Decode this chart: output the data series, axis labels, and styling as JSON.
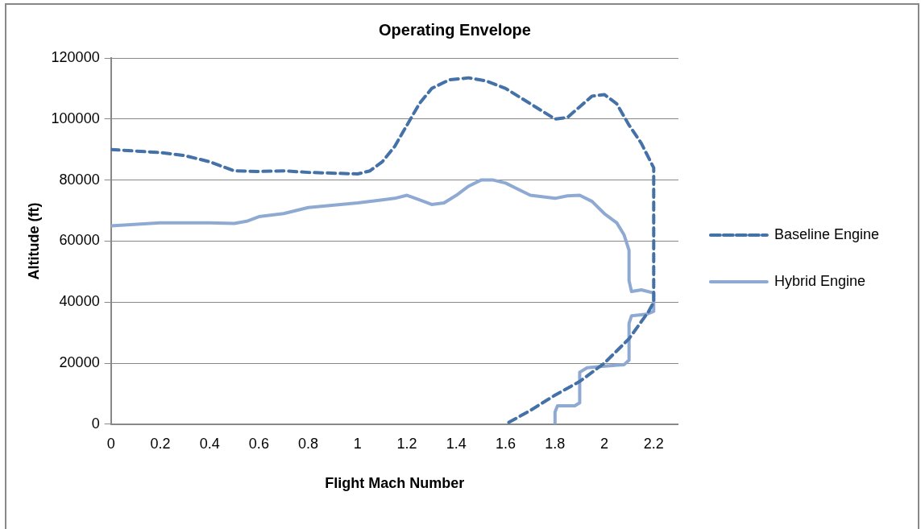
{
  "chart_data": {
    "type": "line",
    "title": "Operating Envelope",
    "xlabel": "Flight Mach Number",
    "ylabel": "Altitude (ft)",
    "xlim": [
      0,
      2.3
    ],
    "xticks": [
      0,
      0.2,
      0.4,
      0.6,
      0.8,
      1,
      1.2,
      1.4,
      1.6,
      1.8,
      2,
      2.2
    ],
    "ylim": [
      0,
      120000
    ],
    "yticks": [
      0,
      20000,
      40000,
      60000,
      80000,
      100000,
      120000
    ],
    "grid": "y",
    "legend": "right",
    "marker": "none",
    "series": [
      {
        "name": "Baseline Engine",
        "color": "#4471a8",
        "line_style": "dashed",
        "x": [
          0,
          0.2,
          0.3,
          0.4,
          0.5,
          0.6,
          0.7,
          0.8,
          1.0,
          1.05,
          1.1,
          1.15,
          1.2,
          1.25,
          1.3,
          1.37,
          1.45,
          1.52,
          1.6,
          1.7,
          1.8,
          1.85,
          1.9,
          1.95,
          2.0,
          2.05,
          2.1,
          2.15,
          2.2,
          2.2,
          2.2,
          2.18,
          2.1,
          2.0,
          1.9,
          1.8,
          1.7,
          1.6
        ],
        "values": [
          90000,
          89000,
          88000,
          86000,
          83000,
          82800,
          83000,
          82500,
          82000,
          83000,
          86000,
          91000,
          98000,
          105000,
          110000,
          112800,
          113500,
          112500,
          110000,
          105000,
          100000,
          100500,
          104000,
          107500,
          108000,
          105000,
          98000,
          92000,
          84000,
          60000,
          40000,
          37000,
          28000,
          20000,
          14000,
          9500,
          4500,
          0
        ]
      },
      {
        "name": "Hybrid Engine",
        "color": "#8eaad3",
        "line_style": "solid",
        "x": [
          0,
          0.2,
          0.3,
          0.4,
          0.5,
          0.55,
          0.6,
          0.7,
          0.75,
          0.8,
          1.0,
          1.1,
          1.15,
          1.2,
          1.25,
          1.3,
          1.35,
          1.4,
          1.45,
          1.5,
          1.55,
          1.6,
          1.65,
          1.7,
          1.8,
          1.85,
          1.9,
          1.95,
          2.0,
          2.05,
          2.08,
          2.1,
          2.1,
          2.11,
          2.15,
          2.2,
          2.2,
          2.17,
          2.11,
          2.1,
          2.1,
          2.08,
          2.0,
          1.93,
          1.9,
          1.9,
          1.88,
          1.81,
          1.8,
          1.8
        ],
        "values": [
          65000,
          66000,
          66000,
          66000,
          65800,
          66500,
          68000,
          69000,
          70000,
          71000,
          72500,
          73500,
          74000,
          75000,
          73500,
          72000,
          72500,
          75000,
          78000,
          80000,
          80000,
          79000,
          77000,
          75000,
          74000,
          74800,
          75000,
          73000,
          69000,
          66000,
          62000,
          57000,
          47000,
          43500,
          44000,
          43000,
          37000,
          36000,
          35500,
          33000,
          21000,
          19500,
          19000,
          18500,
          17000,
          7000,
          6000,
          6000,
          4000,
          0
        ]
      }
    ]
  }
}
